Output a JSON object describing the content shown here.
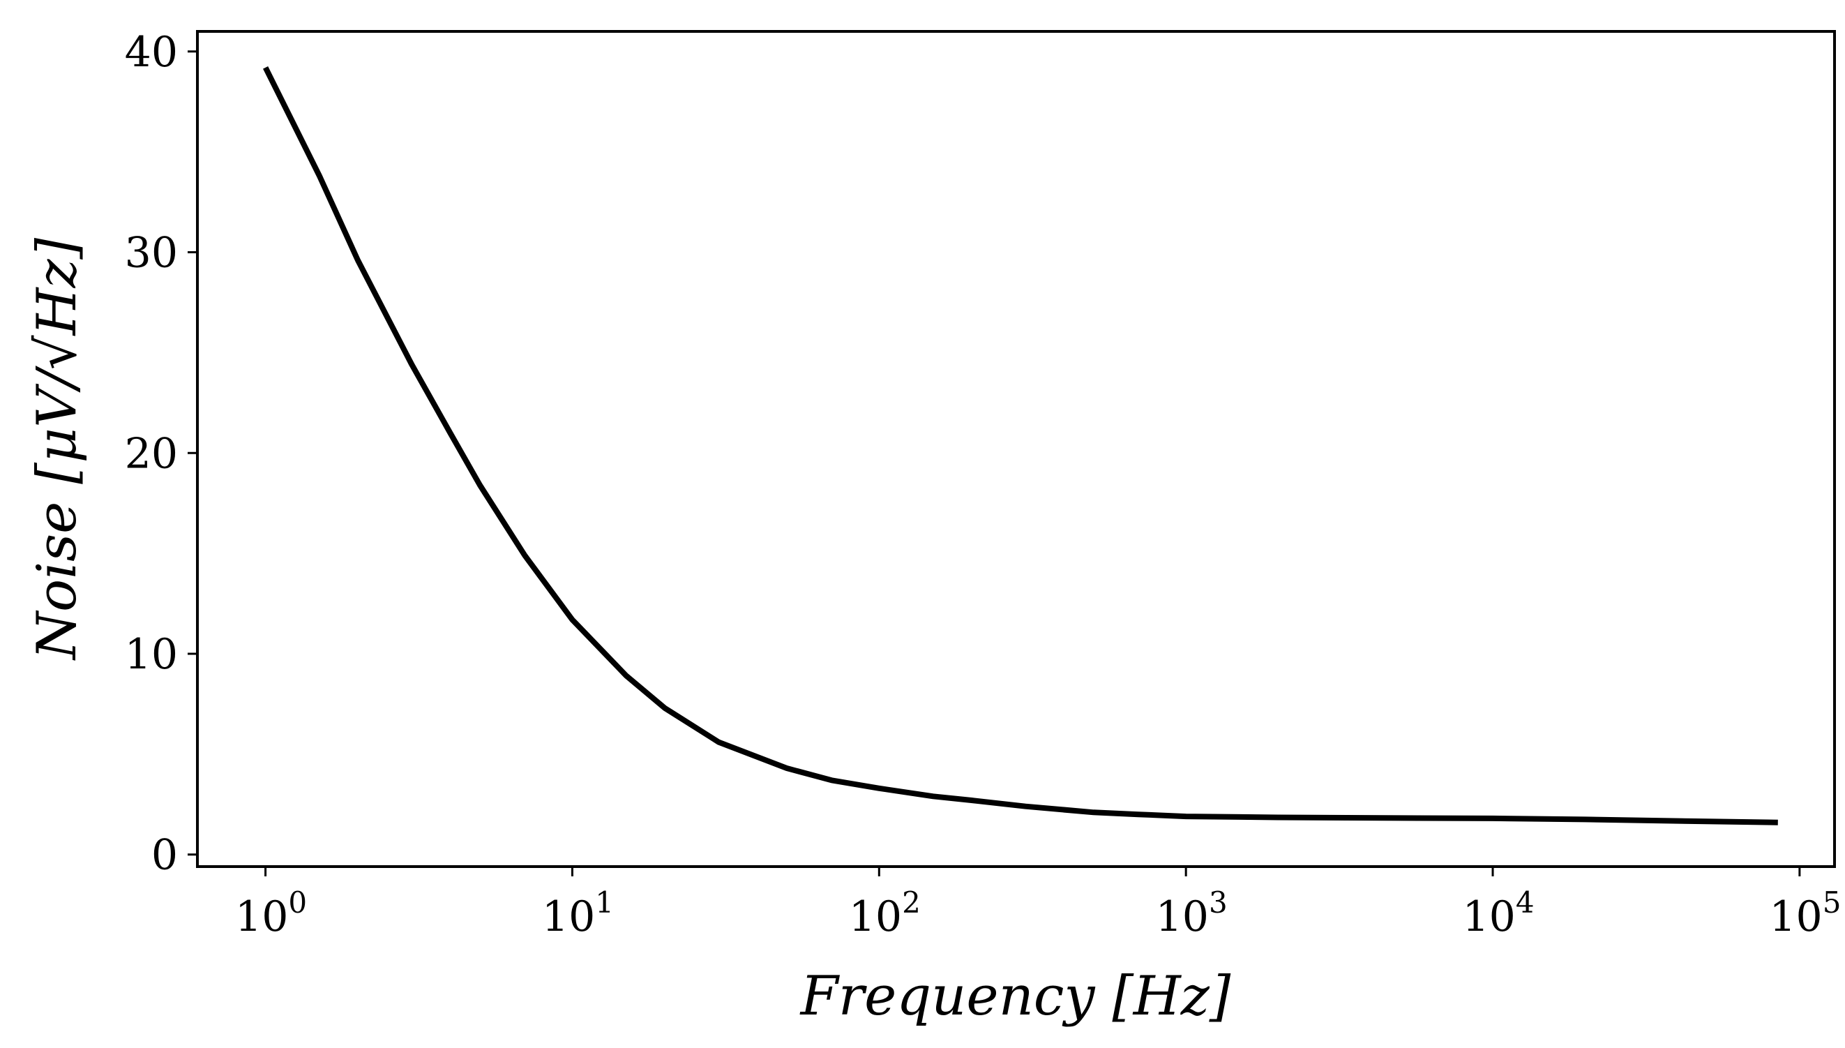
{
  "chart_data": {
    "type": "line",
    "title": "",
    "xlabel": "Frequency [Hz]",
    "ylabel": "Noise [μV/√Hz]",
    "xscale": "log",
    "xlim": [
      0.6,
      130000
    ],
    "ylim": [
      -0.6,
      41
    ],
    "grid": false,
    "legend": "none",
    "x_ticks": [
      {
        "base": "10",
        "exp": "0"
      },
      {
        "base": "10",
        "exp": "1"
      },
      {
        "base": "10",
        "exp": "2"
      },
      {
        "base": "10",
        "exp": "3"
      },
      {
        "base": "10",
        "exp": "4"
      },
      {
        "base": "10",
        "exp": "5"
      }
    ],
    "y_ticks": [
      "0",
      "10",
      "20",
      "30",
      "40"
    ],
    "series": [
      {
        "color": "#000000",
        "x": [
          1,
          1.5,
          2,
          3,
          4,
          5,
          7,
          10,
          15,
          20,
          30,
          50,
          70,
          100,
          150,
          200,
          300,
          500,
          700,
          1000,
          2000,
          5000,
          10000,
          20000,
          50000,
          85000
        ],
        "y": [
          39.2,
          33.8,
          29.6,
          24.4,
          21.0,
          18.4,
          14.9,
          11.7,
          8.9,
          7.3,
          5.6,
          4.3,
          3.7,
          3.3,
          2.9,
          2.7,
          2.4,
          2.1,
          2.0,
          1.9,
          1.85,
          1.82,
          1.8,
          1.75,
          1.65,
          1.6
        ]
      }
    ]
  }
}
